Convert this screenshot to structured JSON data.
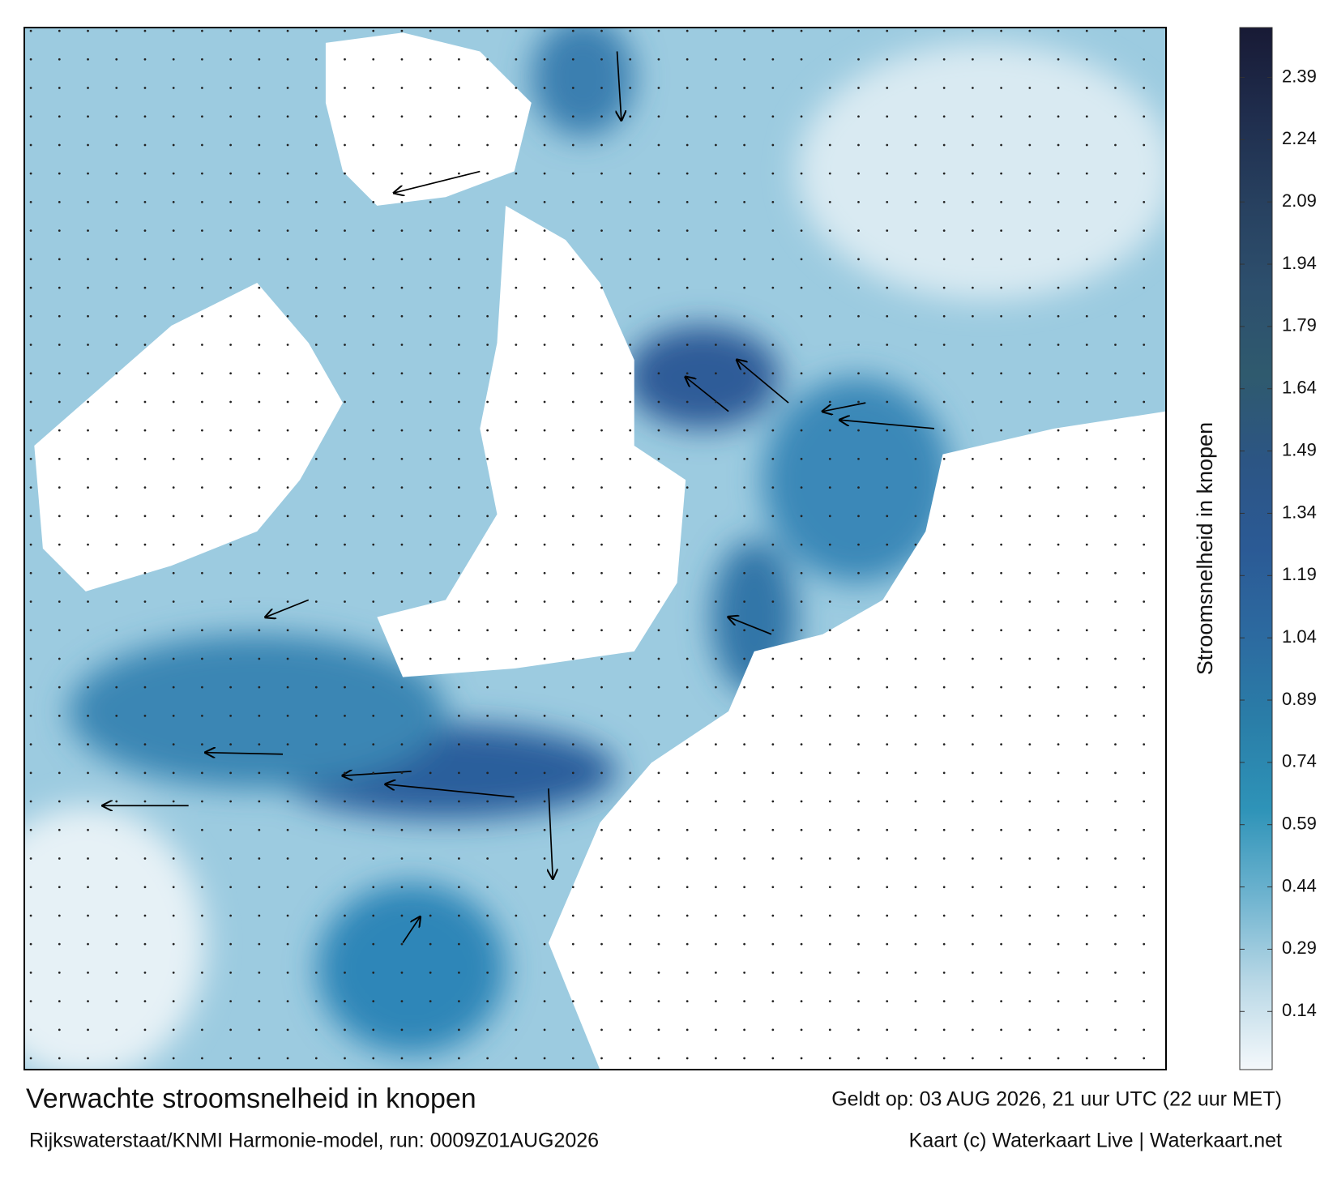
{
  "map": {
    "title": "Verwachte stroomsnelheid in knopen",
    "valid_time": "Geldt op: 03 AUG 2026, 21 uur UTC (22 uur MET)",
    "source": "Rijkswaterstaat/KNMI Harmonie-model, run: 0009Z01AUG2026",
    "credit": "Kaart (c) Waterkaart Live | Waterkaart.net"
  },
  "colorbar": {
    "label": "Stroomsnelheid in knopen",
    "lim": [
      0,
      2.51
    ],
    "ticks": [
      0.14,
      0.29,
      0.44,
      0.59,
      0.74,
      0.89,
      1.04,
      1.19,
      1.34,
      1.49,
      1.64,
      1.79,
      1.94,
      2.09,
      2.24,
      2.39
    ],
    "colors": [
      "#f4f8fb",
      "#b9d8e6",
      "#6eb3cf",
      "#2e93b8",
      "#2a7ea8",
      "#2c6aa0",
      "#2b5a95",
      "#2c5584",
      "#2f5a6e",
      "#2d4f6d",
      "#27405f",
      "#1f2d4d",
      "#181a35"
    ]
  }
}
